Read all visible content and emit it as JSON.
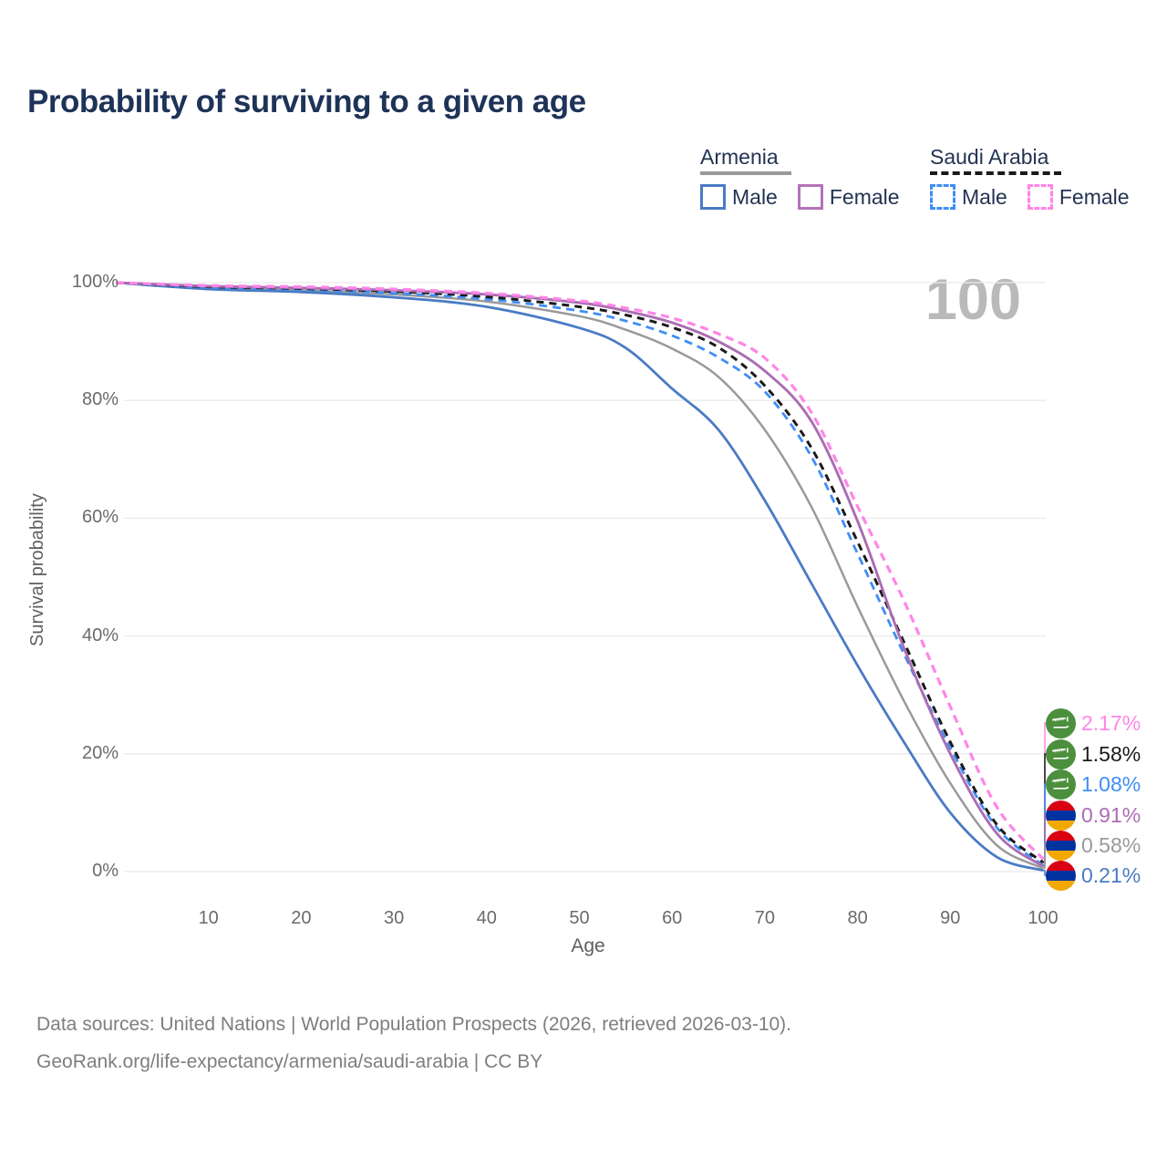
{
  "title": "Probability of surviving to a given age",
  "age_indicator": "100",
  "legend": {
    "groups": [
      {
        "country": "Armenia",
        "line": {
          "style": "solid",
          "color": "#9a9a9a"
        },
        "items": [
          {
            "label": "Male",
            "style": "solid",
            "color": "#4a7bc4"
          },
          {
            "label": "Female",
            "style": "solid",
            "color": "#b472b8"
          }
        ]
      },
      {
        "country": "Saudi Arabia",
        "line": {
          "style": "dashed",
          "color": "#1a1a1a"
        },
        "items": [
          {
            "label": "Male",
            "style": "dashed",
            "color": "#3f8ef4"
          },
          {
            "label": "Female",
            "style": "dashed",
            "color": "#ff85e8"
          }
        ]
      }
    ]
  },
  "axes": {
    "x_label": "Age",
    "y_label": "Survival probability",
    "x_tick_labels": [
      "10",
      "20",
      "30",
      "40",
      "50",
      "60",
      "70",
      "80",
      "90",
      "100"
    ],
    "y_tick_labels": [
      "0%",
      "20%",
      "40%",
      "60%",
      "80%",
      "100%"
    ]
  },
  "end_labels": [
    {
      "value": "2.17%",
      "series": "Saudi Arabia Female",
      "flag": "saudi-arabia-flag-icon",
      "color": "#ff85e8"
    },
    {
      "value": "1.58%",
      "series": "Saudi Arabia Total",
      "flag": "saudi-arabia-flag-icon",
      "color": "#1a1a1a"
    },
    {
      "value": "1.08%",
      "series": "Saudi Arabia Male",
      "flag": "saudi-arabia-flag-icon",
      "color": "#3f8ef4"
    },
    {
      "value": "0.91%",
      "series": "Armenia Female",
      "flag": "armenia-flag-icon",
      "color": "#ab6db3"
    },
    {
      "value": "0.58%",
      "series": "Armenia Total",
      "flag": "armenia-flag-icon",
      "color": "#9a9a9a"
    },
    {
      "value": "0.21%",
      "series": "Armenia Male",
      "flag": "armenia-flag-icon",
      "color": "#4a7bc4"
    }
  ],
  "footer": {
    "line1": "Data sources: United Nations | World Population Prospects (2026, retrieved 2026-03-10).",
    "line2": "GeoRank.org/life-expectancy/armenia/saudi-arabia | CC BY"
  },
  "colors": {
    "title_text": "#1e3358",
    "legend_text": "#223352",
    "axis_text": "#6b6b6b",
    "gridline": "#ebebeb",
    "watermark": "#b9b9b9",
    "footer_text": "#7e7e7e",
    "armenia_flag_stripes": [
      "#d90012",
      "#0033a0",
      "#f2a800"
    ],
    "saudi_flag_green": "#4c8f3d"
  },
  "chart_data": {
    "type": "line",
    "title": "Probability of surviving to a given age",
    "xlabel": "Age",
    "ylabel": "Survival probability",
    "xlim": [
      0,
      100
    ],
    "ylim": [
      0,
      100
    ],
    "grid": "horizontal",
    "x_ticks": [
      10,
      20,
      30,
      40,
      50,
      60,
      70,
      80,
      90,
      100
    ],
    "y_ticks": [
      0,
      20,
      40,
      60,
      80,
      100
    ],
    "x_ages": [
      0,
      10,
      20,
      30,
      40,
      50,
      55,
      60,
      65,
      70,
      75,
      80,
      85,
      90,
      95,
      100
    ],
    "series": [
      {
        "name": "Armenia Male",
        "color": "#4a7bc4",
        "dash": null,
        "end_value_pct": 0.21,
        "values": [
          100,
          98.9,
          98.4,
          97.5,
          95.9,
          92.3,
          88.9,
          82,
          75,
          63,
          49,
          35,
          22,
          10,
          2.5,
          0.21
        ]
      },
      {
        "name": "Armenia Female",
        "color": "#ab6db3",
        "dash": null,
        "end_value_pct": 0.91,
        "values": [
          100,
          99.4,
          99.1,
          98.7,
          98,
          96.6,
          95.2,
          93.2,
          90,
          85,
          76.5,
          59.5,
          38,
          20,
          6.5,
          0.91
        ]
      },
      {
        "name": "Armenia Total",
        "color": "#9a9a9a",
        "dash": null,
        "end_value_pct": 0.58,
        "values": [
          100,
          99.1,
          98.7,
          98,
          96.8,
          94.3,
          92,
          88.8,
          84,
          75,
          62,
          45,
          29,
          15,
          4.5,
          0.58
        ]
      },
      {
        "name": "Saudi Arabia Male",
        "color": "#3f8ef4",
        "dash": "9 6",
        "end_value_pct": 1.08,
        "values": [
          100,
          99.2,
          98.8,
          98.2,
          97.2,
          95.2,
          93.5,
          91,
          87.3,
          81.5,
          70.5,
          54,
          37,
          21,
          7.5,
          1.08
        ]
      },
      {
        "name": "Saudi Arabia Female",
        "color": "#ff85e8",
        "dash": "9 6",
        "end_value_pct": 2.17,
        "values": [
          100,
          99.5,
          99.3,
          98.9,
          98.2,
          96.9,
          95.7,
          94,
          91.3,
          87.2,
          78,
          62,
          46,
          28,
          11,
          2.17
        ]
      },
      {
        "name": "Saudi Arabia Total",
        "color": "#1a1a1a",
        "dash": "8 6",
        "end_value_pct": 1.58,
        "values": [
          100,
          99.3,
          99,
          98.5,
          97.6,
          95.9,
          94.5,
          92.4,
          89,
          82.5,
          72,
          56,
          39,
          22,
          8,
          1.58
        ]
      }
    ]
  }
}
